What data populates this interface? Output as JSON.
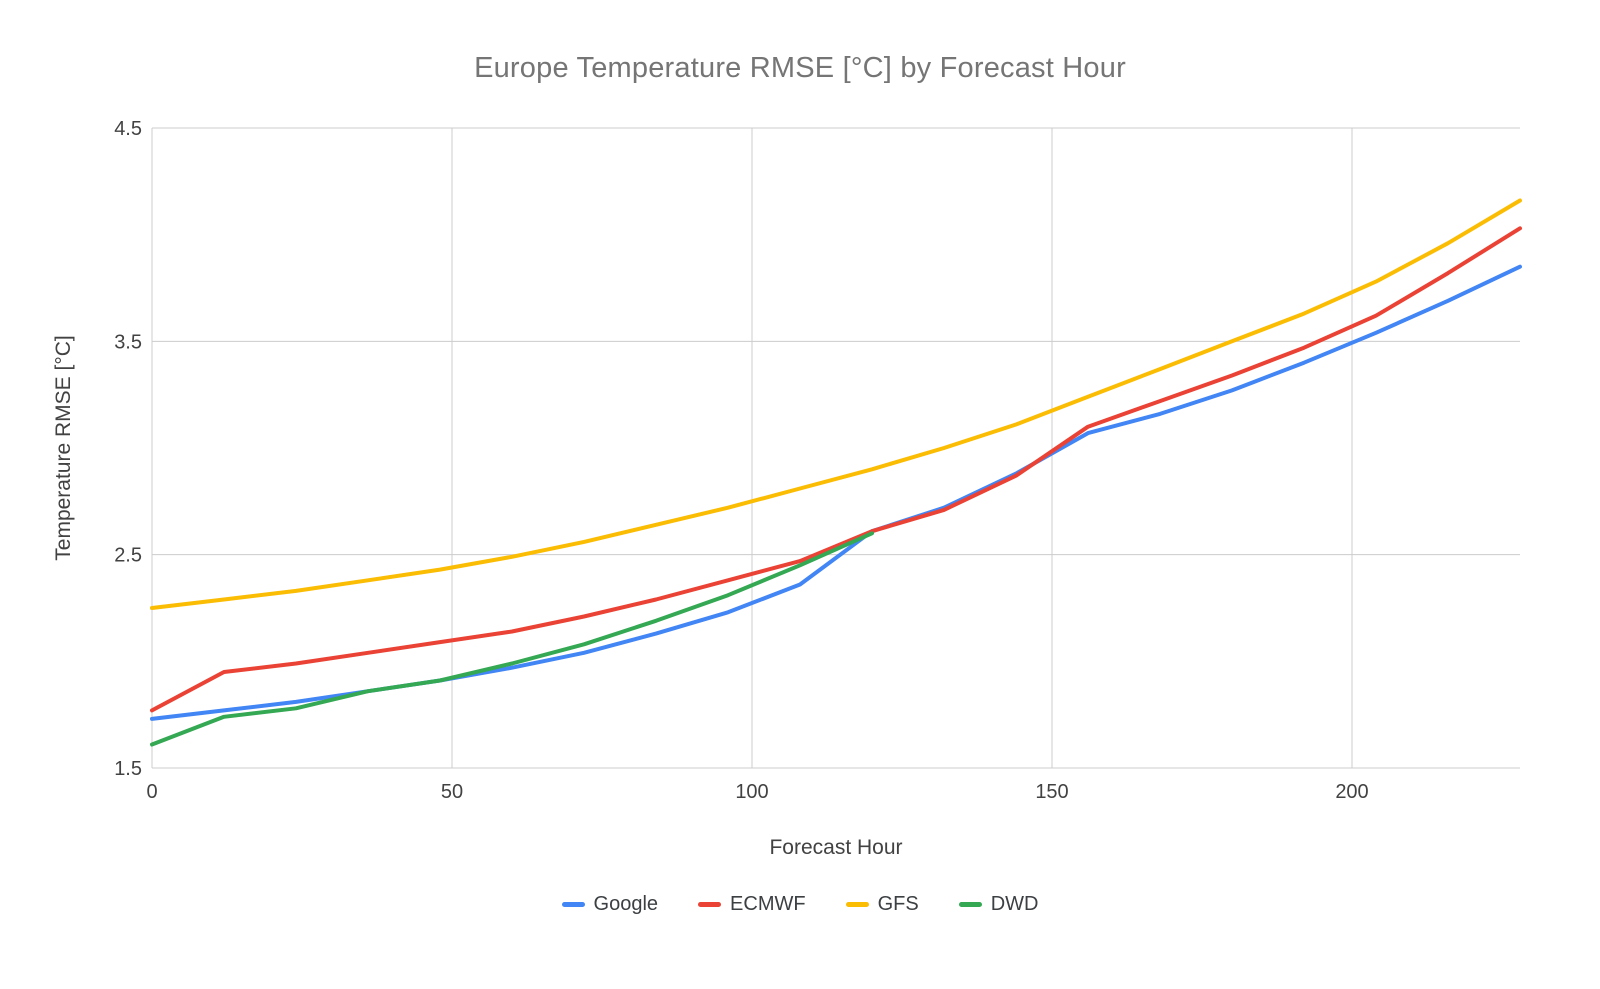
{
  "page": {
    "background": "#ffffff"
  },
  "chart_data": {
    "type": "line",
    "title": "Europe Temperature RMSE [°C] by Forecast Hour",
    "xlabel": "Forecast Hour",
    "ylabel": "Temperature RMSE [°C]",
    "xlim": [
      0,
      228
    ],
    "ylim": [
      1.5,
      4.5
    ],
    "x_ticks": [
      0,
      50,
      100,
      150,
      200
    ],
    "y_ticks": [
      1.5,
      2.5,
      3.5,
      4.5
    ],
    "grid": true,
    "grid_color": "#cccccc",
    "legend_position": "bottom",
    "x": [
      0,
      12,
      24,
      36,
      48,
      60,
      72,
      84,
      96,
      108,
      120,
      132,
      144,
      156,
      168,
      180,
      192,
      204,
      216,
      228
    ],
    "series": [
      {
        "name": "Google",
        "color": "#4285F4",
        "values": [
          1.73,
          1.77,
          1.81,
          1.86,
          1.91,
          1.97,
          2.04,
          2.13,
          2.23,
          2.36,
          2.61,
          2.72,
          2.88,
          3.07,
          3.16,
          3.27,
          3.4,
          3.54,
          3.69,
          3.85
        ]
      },
      {
        "name": "ECMWF",
        "color": "#EA4335",
        "values": [
          1.77,
          1.95,
          1.99,
          2.04,
          2.09,
          2.14,
          2.21,
          2.29,
          2.38,
          2.47,
          2.61,
          2.71,
          2.87,
          3.1,
          3.22,
          3.34,
          3.47,
          3.62,
          3.82,
          4.03
        ]
      },
      {
        "name": "GFS",
        "color": "#FBBC04",
        "values": [
          2.25,
          2.29,
          2.33,
          2.38,
          2.43,
          2.49,
          2.56,
          2.64,
          2.72,
          2.81,
          2.9,
          3.0,
          3.11,
          3.24,
          3.37,
          3.5,
          3.63,
          3.78,
          3.96,
          4.16
        ]
      },
      {
        "name": "DWD",
        "color": "#34A853",
        "values": [
          1.61,
          1.74,
          1.78,
          1.86,
          1.91,
          1.99,
          2.08,
          2.19,
          2.31,
          2.45,
          2.6,
          null,
          null,
          null,
          null,
          null,
          null,
          null,
          null,
          null
        ]
      }
    ]
  }
}
